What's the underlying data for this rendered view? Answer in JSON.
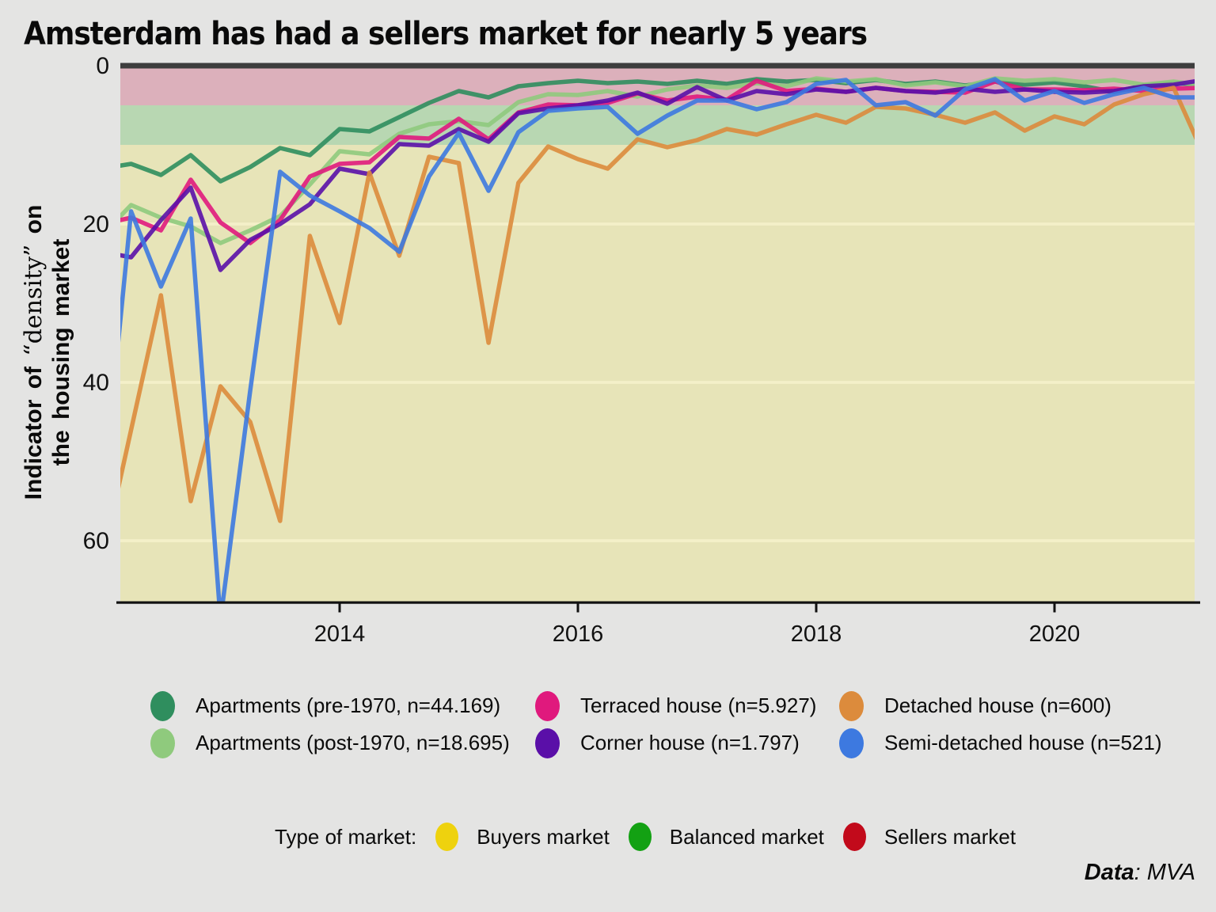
{
  "title": "Amsterdam has had a sellers market for nearly 5 years",
  "y_axis": {
    "label_part1": "Indicator of ",
    "label_quoted": "“density”",
    "label_part2": " on",
    "label_line2": "the housing market",
    "ticks": [
      0,
      20,
      40,
      60
    ]
  },
  "x_axis": {
    "ticks": [
      2014,
      2016,
      2018,
      2020
    ]
  },
  "source": {
    "prefix": "Data",
    "suffix": ": MVA"
  },
  "market_legend": {
    "label": "Type of market:",
    "items": [
      {
        "label": "Buyers market",
        "color": "#eed20e"
      },
      {
        "label": "Balanced market",
        "color": "#13a113"
      },
      {
        "label": "Sellers market",
        "color": "#c20a1b"
      }
    ]
  },
  "chart_data": {
    "type": "line",
    "title": "Amsterdam has had a sellers market for nearly 5 years",
    "ylabel": "Indicator of “density” on the housing market",
    "y_inverted": true,
    "ylim": [
      0,
      67.8
    ],
    "xlim": [
      2012.16,
      2021.18
    ],
    "gridline_values": [
      20,
      40,
      60
    ],
    "gridline_color": "#f8f4cf",
    "zero_line_color": "#3d3d3d",
    "axis_color": "#111111",
    "bands": [
      {
        "label": "Sellers market",
        "from": 0,
        "to": 5,
        "color": "#dcb0bb"
      },
      {
        "label": "Balanced market",
        "from": 5,
        "to": 10,
        "color": "#b8d7b2"
      },
      {
        "label": "Buyers market",
        "from": 10,
        "to": 67.8,
        "color": "#e7e4b8"
      }
    ],
    "x": [
      2012.0,
      2012.25,
      2012.5,
      2012.75,
      2013.0,
      2013.25,
      2013.5,
      2013.75,
      2014.0,
      2014.25,
      2014.5,
      2014.75,
      2015.0,
      2015.25,
      2015.5,
      2015.75,
      2016.0,
      2016.25,
      2016.5,
      2016.75,
      2017.0,
      2017.25,
      2017.5,
      2017.75,
      2018.0,
      2018.25,
      2018.5,
      2018.75,
      2019.0,
      2019.25,
      2019.5,
      2019.75,
      2020.0,
      2020.25,
      2020.5,
      2020.75,
      2021.0,
      2021.25
    ],
    "series": [
      {
        "id": "apartments-pre-1970",
        "name": "Apartments (pre-1970, n=44.169)",
        "color": "#2f8e5e",
        "values": [
          13.0,
          12.4,
          13.8,
          11.3,
          14.6,
          12.8,
          10.4,
          11.3,
          8.0,
          8.3,
          6.5,
          4.7,
          3.2,
          4.0,
          2.6,
          2.2,
          1.9,
          2.2,
          2.0,
          2.3,
          1.9,
          2.3,
          1.7,
          2.0,
          1.8,
          2.2,
          1.8,
          2.3,
          2.0,
          2.5,
          2.0,
          2.4,
          2.1,
          2.6,
          3.3,
          2.5,
          2.2,
          2.4
        ]
      },
      {
        "id": "apartments-post-1970",
        "name": "Apartments (post-1970, n=18.695)",
        "color": "#8fca7d",
        "values": [
          21.5,
          17.6,
          19.2,
          20.3,
          22.4,
          20.8,
          19.0,
          15.0,
          10.8,
          11.2,
          8.6,
          7.4,
          7.0,
          7.5,
          4.6,
          3.6,
          3.7,
          3.2,
          3.9,
          3.0,
          2.5,
          2.8,
          2.2,
          2.6,
          1.6,
          2.0,
          1.7,
          2.5,
          2.1,
          2.6,
          1.6,
          1.9,
          1.7,
          2.1,
          1.8,
          2.4,
          2.0,
          2.5
        ]
      },
      {
        "id": "terraced-house",
        "name": "Terraced house (n=5.927)",
        "color": "#e0197d",
        "values": [
          20.0,
          19.2,
          20.8,
          14.4,
          19.8,
          22.4,
          19.5,
          14.0,
          12.4,
          12.2,
          9.0,
          9.2,
          6.7,
          9.3,
          5.9,
          4.9,
          5.0,
          4.7,
          3.5,
          4.4,
          3.9,
          4.3,
          1.9,
          3.2,
          2.9,
          3.3,
          2.8,
          3.2,
          3.3,
          3.4,
          2.0,
          3.0,
          3.0,
          3.1,
          2.9,
          3.2,
          2.9,
          2.8
        ]
      },
      {
        "id": "corner-house",
        "name": "Corner house (n=1.797)",
        "color": "#5a0fa8",
        "values": [
          23.5,
          24.2,
          19.5,
          15.4,
          25.8,
          22.0,
          20.0,
          17.5,
          13.0,
          13.7,
          9.9,
          10.1,
          8.0,
          9.6,
          6.0,
          5.4,
          5.0,
          4.4,
          3.4,
          4.8,
          2.7,
          4.4,
          3.2,
          3.6,
          3.0,
          3.3,
          2.8,
          3.2,
          3.4,
          2.9,
          3.3,
          3.0,
          3.3,
          3.4,
          3.2,
          2.6,
          2.4,
          1.8
        ]
      },
      {
        "id": "detached-house",
        "name": "Detached house (n=600)",
        "color": "#dc8b3c",
        "values": [
          63.0,
          46.0,
          29.0,
          55.0,
          40.5,
          45.0,
          57.5,
          21.5,
          32.5,
          13.5,
          24.0,
          11.5,
          12.3,
          35.0,
          14.8,
          10.2,
          11.8,
          13.0,
          9.3,
          10.3,
          9.4,
          8.0,
          8.7,
          7.4,
          6.2,
          7.2,
          5.2,
          5.4,
          6.2,
          7.2,
          5.9,
          8.2,
          6.4,
          7.4,
          4.9,
          3.6,
          2.8,
          11.2
        ]
      },
      {
        "id": "semi-detached-house",
        "name": "Semi-detached house (n=521)",
        "color": "#3d79e0",
        "values": [
          56.5,
          18.4,
          27.9,
          19.3,
          70.0,
          41.0,
          13.4,
          16.4,
          18.4,
          20.5,
          23.5,
          14.0,
          8.5,
          15.8,
          8.4,
          5.7,
          5.4,
          5.2,
          8.6,
          6.3,
          4.4,
          4.4,
          5.5,
          4.6,
          2.3,
          1.8,
          5.0,
          4.6,
          6.3,
          3.0,
          1.7,
          4.4,
          3.2,
          4.7,
          3.6,
          2.8,
          4.0,
          4.0
        ]
      }
    ]
  }
}
